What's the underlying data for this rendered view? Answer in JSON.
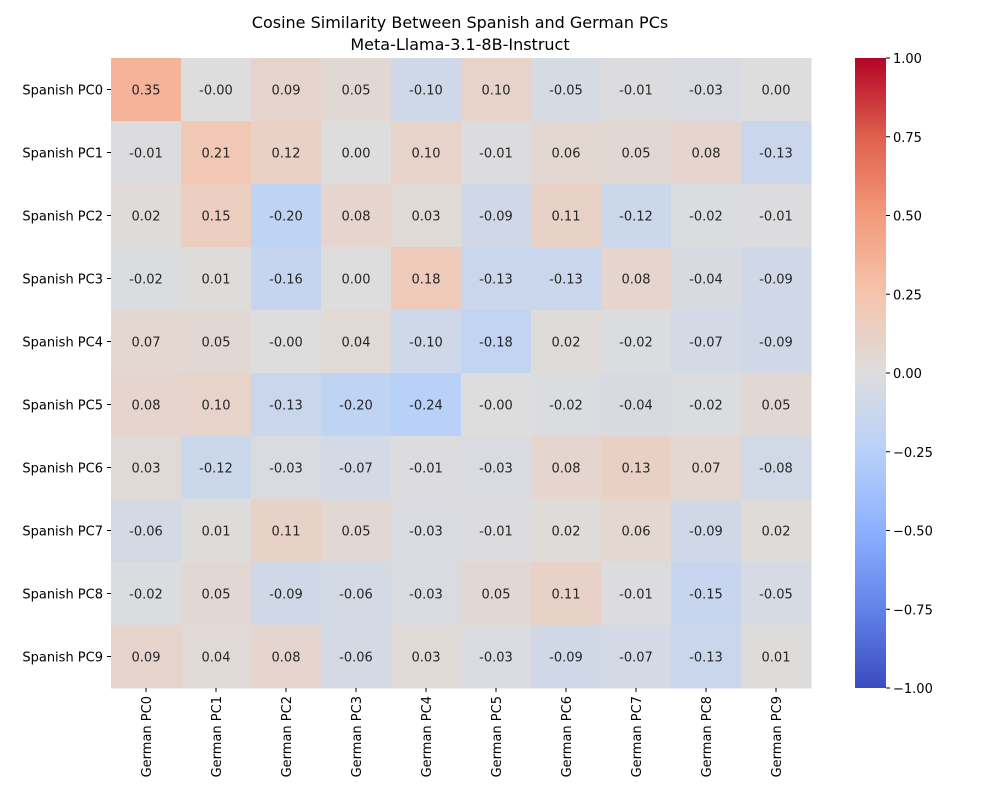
{
  "chart_data": {
    "type": "heatmap",
    "title": "Cosine Similarity Between Spanish and German PCs",
    "subtitle": "Meta-Llama-3.1-8B-Instruct",
    "row_labels": [
      "Spanish PC0",
      "Spanish PC1",
      "Spanish PC2",
      "Spanish PC3",
      "Spanish PC4",
      "Spanish PC5",
      "Spanish PC6",
      "Spanish PC7",
      "Spanish PC8",
      "Spanish PC9"
    ],
    "col_labels": [
      "German PC0",
      "German PC1",
      "German PC2",
      "German PC3",
      "German PC4",
      "German PC5",
      "German PC6",
      "German PC7",
      "German PC8",
      "German PC9"
    ],
    "values": [
      [
        0.35,
        -0.0,
        0.09,
        0.05,
        -0.1,
        0.1,
        -0.05,
        -0.01,
        -0.03,
        0.0
      ],
      [
        -0.01,
        0.21,
        0.12,
        0.0,
        0.1,
        -0.01,
        0.06,
        0.05,
        0.08,
        -0.13
      ],
      [
        0.02,
        0.15,
        -0.2,
        0.08,
        0.03,
        -0.09,
        0.11,
        -0.12,
        -0.02,
        -0.01
      ],
      [
        -0.02,
        0.01,
        -0.16,
        0.0,
        0.18,
        -0.13,
        -0.13,
        0.08,
        -0.04,
        -0.09
      ],
      [
        0.07,
        0.05,
        -0.0,
        0.04,
        -0.1,
        -0.18,
        0.02,
        -0.02,
        -0.07,
        -0.09
      ],
      [
        0.08,
        0.1,
        -0.13,
        -0.2,
        -0.24,
        -0.0,
        -0.02,
        -0.04,
        -0.02,
        0.05
      ],
      [
        0.03,
        -0.12,
        -0.03,
        -0.07,
        -0.01,
        -0.03,
        0.08,
        0.13,
        0.07,
        -0.08
      ],
      [
        -0.06,
        0.01,
        0.11,
        0.05,
        -0.03,
        -0.01,
        0.02,
        0.06,
        -0.09,
        0.02
      ],
      [
        -0.02,
        0.05,
        -0.09,
        -0.06,
        -0.03,
        0.05,
        0.11,
        -0.01,
        -0.15,
        -0.05
      ],
      [
        0.09,
        0.04,
        0.08,
        -0.06,
        0.03,
        -0.03,
        -0.09,
        -0.07,
        -0.13,
        0.01
      ]
    ],
    "cell_labels": [
      [
        "0.35",
        "-0.00",
        "0.09",
        "0.05",
        "-0.10",
        "0.10",
        "-0.05",
        "-0.01",
        "-0.03",
        "0.00"
      ],
      [
        "-0.01",
        "0.21",
        "0.12",
        "0.00",
        "0.10",
        "-0.01",
        "0.06",
        "0.05",
        "0.08",
        "-0.13"
      ],
      [
        "0.02",
        "0.15",
        "-0.20",
        "0.08",
        "0.03",
        "-0.09",
        "0.11",
        "-0.12",
        "-0.02",
        "-0.01"
      ],
      [
        "-0.02",
        "0.01",
        "-0.16",
        "0.00",
        "0.18",
        "-0.13",
        "-0.13",
        "0.08",
        "-0.04",
        "-0.09"
      ],
      [
        "0.07",
        "0.05",
        "-0.00",
        "0.04",
        "-0.10",
        "-0.18",
        "0.02",
        "-0.02",
        "-0.07",
        "-0.09"
      ],
      [
        "0.08",
        "0.10",
        "-0.13",
        "-0.20",
        "-0.24",
        "-0.00",
        "-0.02",
        "-0.04",
        "-0.02",
        "0.05"
      ],
      [
        "0.03",
        "-0.12",
        "-0.03",
        "-0.07",
        "-0.01",
        "-0.03",
        "0.08",
        "0.13",
        "0.07",
        "-0.08"
      ],
      [
        "-0.06",
        "0.01",
        "0.11",
        "0.05",
        "-0.03",
        "-0.01",
        "0.02",
        "0.06",
        "-0.09",
        "0.02"
      ],
      [
        "-0.02",
        "0.05",
        "-0.09",
        "-0.06",
        "-0.03",
        "0.05",
        "0.11",
        "-0.01",
        "-0.15",
        "-0.05"
      ],
      [
        "0.09",
        "0.04",
        "0.08",
        "-0.06",
        "0.03",
        "-0.03",
        "-0.09",
        "-0.07",
        "-0.13",
        "0.01"
      ]
    ],
    "colormap": "coolwarm",
    "vmin": -1.0,
    "vmax": 1.0,
    "colorbar_ticks": [
      -1.0,
      -0.75,
      -0.5,
      -0.25,
      0.0,
      0.25,
      0.5,
      0.75,
      1.0
    ],
    "colorbar_tick_labels": [
      "−1.00",
      "−0.75",
      "−0.50",
      "−0.25",
      "0.00",
      "0.25",
      "0.50",
      "0.75",
      "1.00"
    ],
    "colorbar_position": "right",
    "grid": false
  }
}
